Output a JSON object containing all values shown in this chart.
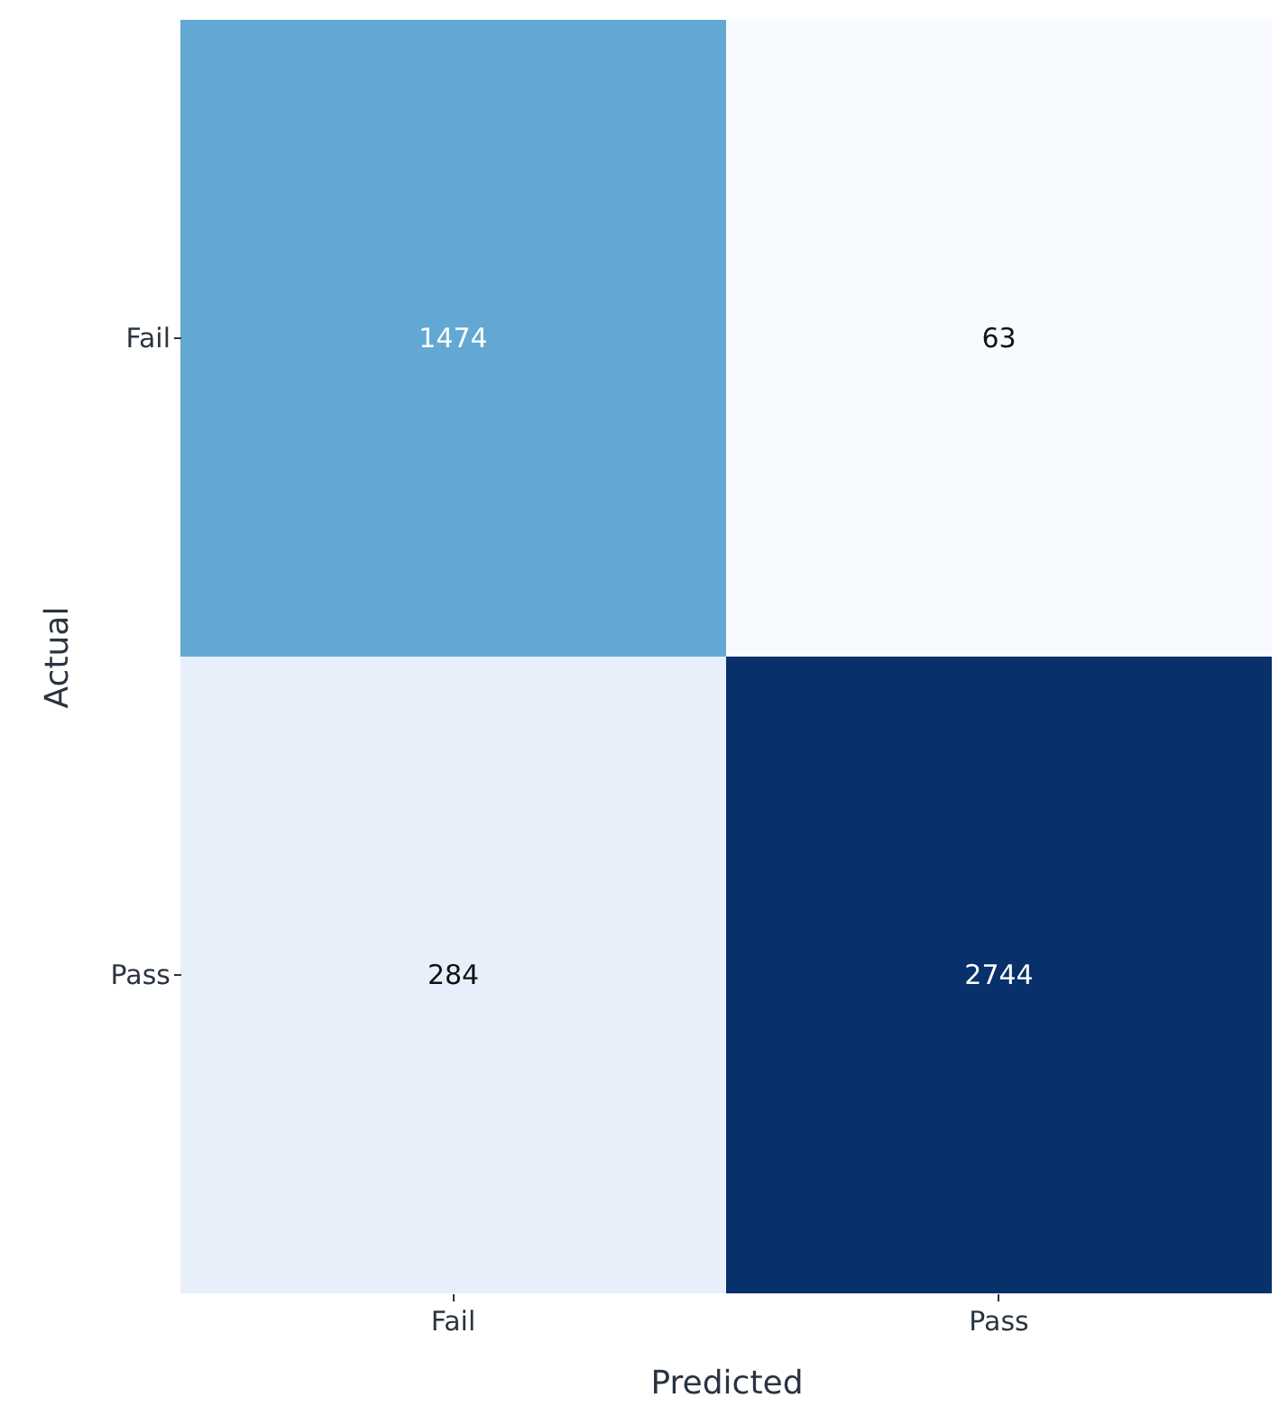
{
  "chart_data": {
    "type": "heatmap",
    "xlabel": "Predicted",
    "ylabel": "Actual",
    "categories": [
      "Fail",
      "Pass"
    ],
    "y_categories": [
      "Fail",
      "Pass"
    ],
    "cells": [
      [
        1474,
        63
      ],
      [
        284,
        2744
      ]
    ],
    "data_labels": true
  }
}
